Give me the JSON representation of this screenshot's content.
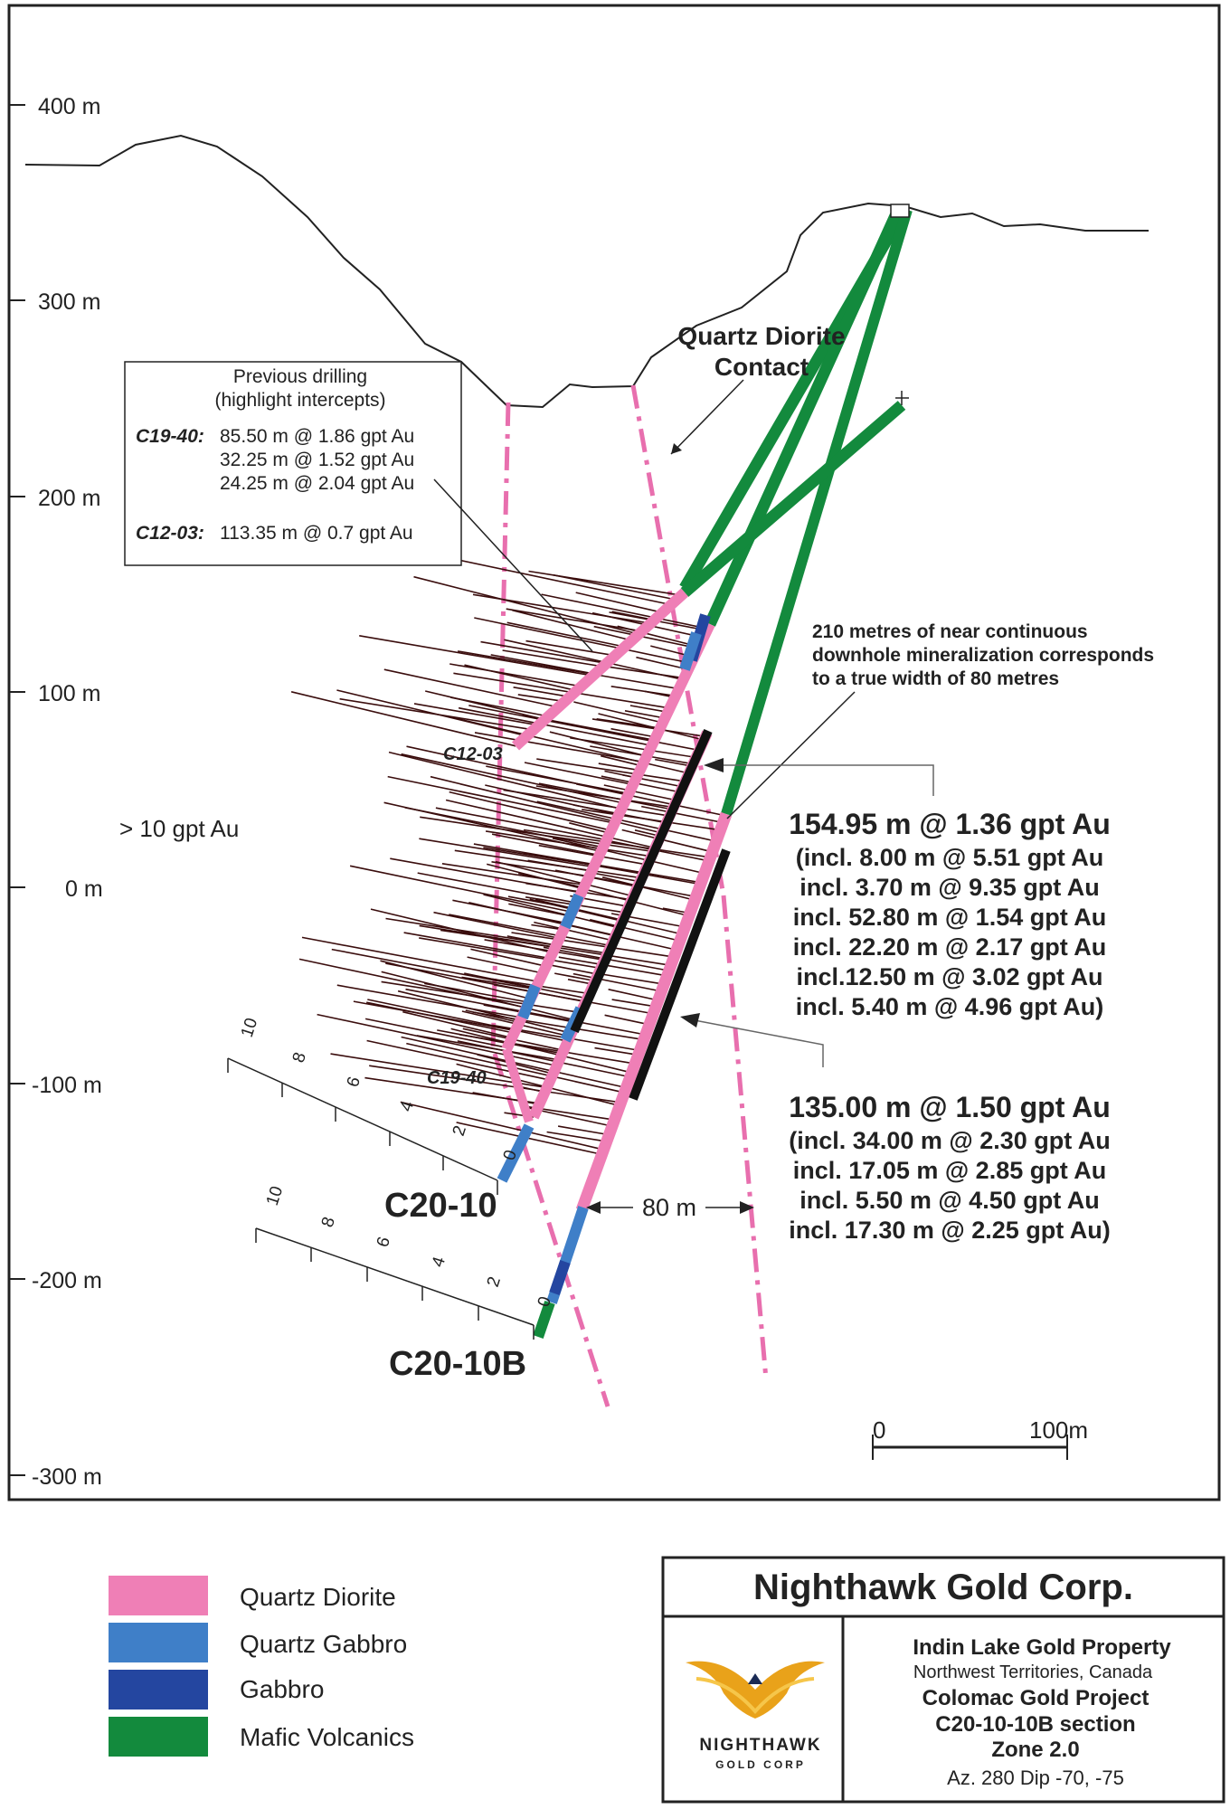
{
  "elevation_labels": [
    "400 m",
    "300 m",
    "200 m",
    "100 m",
    "0 m",
    "-100 m",
    "-200 m",
    "-300 m"
  ],
  "previous_drilling": {
    "title_line1": "Previous drilling",
    "title_line2": "(highlight intercepts)",
    "c1940_label": "C19-40:",
    "c1940_line1": "85.50 m @ 1.86 gpt Au",
    "c1940_line2": "32.25 m @ 1.52 gpt Au",
    "c1940_line3": "24.25 m @  2.04 gpt Au",
    "c1203_label": "C12-03:",
    "c1203_line1": "113.35 m @ 0.7 gpt Au"
  },
  "contact_label": {
    "line1": "Quartz Diorite",
    "line2": "Contact"
  },
  "mineralization_note": {
    "line1": "210 metres of near continuous",
    "line2": "downhole mineralization corresponds",
    "line3": "to a true width of 80 metres"
  },
  "grade_label": "> 10 gpt Au",
  "hole_labels": {
    "c1203": "C12-03",
    "c1940": "C19-40",
    "c2010": "C20-10",
    "c2010b": "C20-10B"
  },
  "intercept_c2010": {
    "headline": "154.95 m @ 1.36 gpt Au",
    "lines": [
      "(incl. 8.00 m @ 5.51 gpt Au",
      "incl. 3.70 m @ 9.35 gpt Au",
      "incl. 52.80 m @ 1.54 gpt Au",
      "incl. 22.20 m @ 2.17 gpt Au",
      "incl.12.50 m @ 3.02 gpt Au",
      "incl. 5.40 m @ 4.96 gpt Au)"
    ]
  },
  "intercept_c2010b": {
    "headline": "135.00 m @ 1.50 gpt Au",
    "lines": [
      "(incl. 34.00 m @ 2.30 gpt Au",
      "incl. 17.05 m @ 2.85 gpt Au",
      "incl. 5.50 m @ 4.50 gpt Au",
      "incl. 17.30 m @ 2.25 gpt Au)"
    ]
  },
  "width_label": "80 m",
  "scale_bar": {
    "start": "0",
    "end": "100m"
  },
  "scale_ticks": [
    "10",
    "8",
    "6",
    "4",
    "2",
    "0"
  ],
  "legend": [
    {
      "label": "Quartz Diorite",
      "color": "#ef7fb6"
    },
    {
      "label": "Quartz Gabbro",
      "color": "#3f7fc8"
    },
    {
      "label": "Gabbro",
      "color": "#2446a0"
    },
    {
      "label": "Mafic Volcanics",
      "color": "#138a3d"
    }
  ],
  "title_block": {
    "company": "Nighthawk Gold Corp.",
    "property": "Indin Lake Gold Property",
    "location": "Northwest Territories, Canada",
    "project": "Colomac Gold Project",
    "section": "C20-10-10B section",
    "zone": "Zone 2.0",
    "azimuth": "Az. 280 Dip -70, -75",
    "logo_line1": "NIGHTHAWK",
    "logo_line2": "GOLD CORP"
  },
  "colors": {
    "quartz_diorite": "#ef7fb6",
    "quartz_gabbro": "#3f7fc8",
    "gabbro": "#2446a0",
    "mafic_volcanics": "#138a3d",
    "contact": "#e86fae",
    "assay_trace": "#3a0d0d"
  }
}
